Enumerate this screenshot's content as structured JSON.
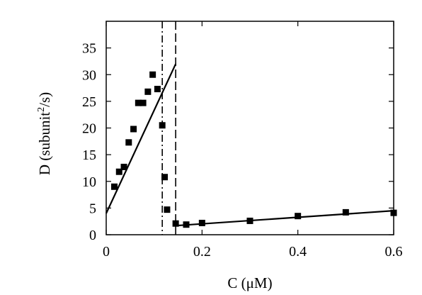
{
  "chart_data": {
    "type": "scatter",
    "xlabel": "C (μM)",
    "ylabel": {
      "prefix": "D (subunit",
      "sup": "2",
      "suffix": "/s)"
    },
    "xlim": [
      0,
      0.6
    ],
    "ylim": [
      0,
      40
    ],
    "xticks": [
      0,
      0.2,
      0.4,
      0.6
    ],
    "xtick_labels": [
      "0",
      "0.2",
      "0.4",
      "0.6"
    ],
    "yticks": [
      0,
      5,
      10,
      15,
      20,
      25,
      30,
      35
    ],
    "ytick_labels": [
      "0",
      "5",
      "10",
      "15",
      "20",
      "25",
      "30",
      "35"
    ],
    "grid": false,
    "legend": "none",
    "series": [
      {
        "marker": "square",
        "color": "#000000",
        "points": [
          [
            0.017,
            9.0
          ],
          [
            0.027,
            11.8
          ],
          [
            0.037,
            12.7
          ],
          [
            0.047,
            17.3
          ],
          [
            0.057,
            19.8
          ],
          [
            0.067,
            24.7
          ],
          [
            0.077,
            24.7
          ],
          [
            0.087,
            26.8
          ],
          [
            0.097,
            30.0
          ],
          [
            0.107,
            27.3
          ],
          [
            0.117,
            20.5
          ],
          [
            0.122,
            10.8
          ],
          [
            0.127,
            4.7
          ],
          [
            0.145,
            2.1
          ],
          [
            0.167,
            1.9
          ],
          [
            0.2,
            2.2
          ],
          [
            0.3,
            2.6
          ],
          [
            0.4,
            3.5
          ],
          [
            0.5,
            4.2
          ],
          [
            0.6,
            4.1
          ]
        ]
      }
    ],
    "fit_lines": [
      {
        "x": [
          0.0,
          0.145
        ],
        "y": [
          4.0,
          32.0
        ],
        "color": "#000000"
      },
      {
        "x": [
          0.145,
          0.6
        ],
        "y": [
          1.7,
          4.5
        ],
        "color": "#000000"
      }
    ],
    "vertical_lines": [
      {
        "x": 0.117,
        "style": "dash-dot",
        "color": "#000000"
      },
      {
        "x": 0.145,
        "style": "dashed",
        "color": "#000000"
      }
    ]
  }
}
